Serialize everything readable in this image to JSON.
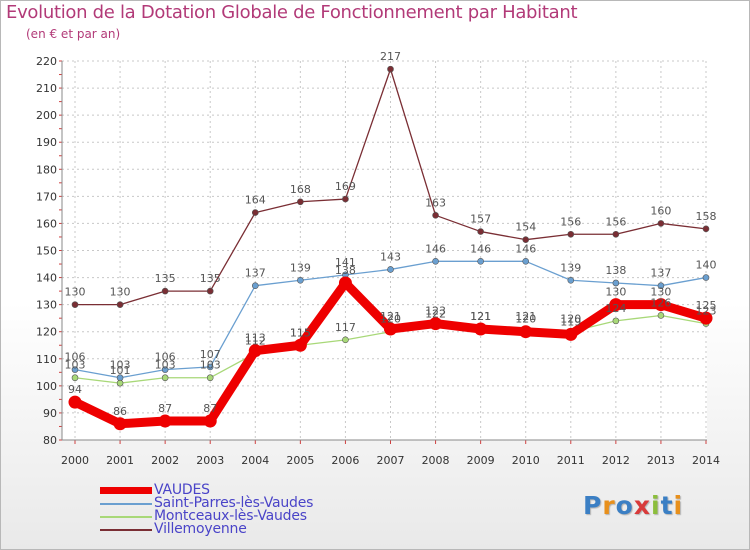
{
  "title": "Evolution de la Dotation Globale de Fonctionnement par Habitant",
  "subtitle": "(en € et par an)",
  "logo": {
    "text": "Proxiti",
    "letter_colors": [
      "#3b7fc4",
      "#e8901c",
      "#3b7fc4",
      "#d83a3a",
      "#8cbe3c",
      "#3b7fc4",
      "#e8901c"
    ]
  },
  "chart_data": {
    "type": "line",
    "title": "Evolution de la Dotation Globale de Fonctionnement par Habitant",
    "ylabel": "(en € et par an)",
    "x": [
      2000,
      2001,
      2002,
      2003,
      2004,
      2005,
      2006,
      2007,
      2008,
      2009,
      2010,
      2011,
      2012,
      2013,
      2014
    ],
    "ylim": [
      80,
      220
    ],
    "yticks": [
      80,
      90,
      100,
      110,
      120,
      130,
      140,
      150,
      160,
      170,
      180,
      190,
      200,
      210,
      220
    ],
    "grid": true,
    "legend_position": "bottom-left",
    "series": [
      {
        "name": "VAUDES",
        "color": "#ee0000",
        "values": [
          94,
          86,
          87,
          87,
          113,
          115,
          138,
          121,
          123,
          121,
          120,
          119,
          130,
          130,
          125
        ],
        "labels": [
          "94",
          "86",
          "87",
          "87",
          "113",
          "115",
          "138",
          "121",
          "123",
          "121",
          "120",
          "119",
          "130",
          "130",
          "125"
        ]
      },
      {
        "name": "Saint-Parres-lès-Vaudes",
        "color": "#6a9fd0",
        "values": [
          106,
          103,
          106,
          107,
          137,
          139,
          141,
          143,
          146,
          146,
          146,
          139,
          138,
          137,
          140
        ],
        "labels": [
          "106",
          "103",
          "106",
          "107",
          "137",
          "139",
          "141",
          "143",
          "146",
          "146",
          "146",
          "139",
          "138",
          "137",
          "140"
        ]
      },
      {
        "name": "Montceaux-lès-Vaudes",
        "color": "#a8d878",
        "values": [
          103,
          101,
          103,
          103,
          112,
          115,
          117,
          120,
          122,
          121,
          121,
          120,
          124,
          126,
          123
        ],
        "labels": [
          "103",
          "101",
          "103",
          "103",
          "112",
          "115",
          "117",
          "120",
          "122",
          "121",
          "121",
          "120",
          "124",
          "126",
          "123"
        ]
      },
      {
        "name": "Villemoyenne",
        "color": "#7a2e34",
        "values": [
          130,
          130,
          135,
          135,
          164,
          168,
          169,
          217,
          163,
          157,
          154,
          156,
          156,
          160,
          158
        ],
        "labels": [
          "130",
          "130",
          "135",
          "135",
          "164",
          "168",
          "169",
          "217",
          "163",
          "157",
          "154",
          "156",
          "156",
          "160",
          "158"
        ]
      }
    ]
  }
}
